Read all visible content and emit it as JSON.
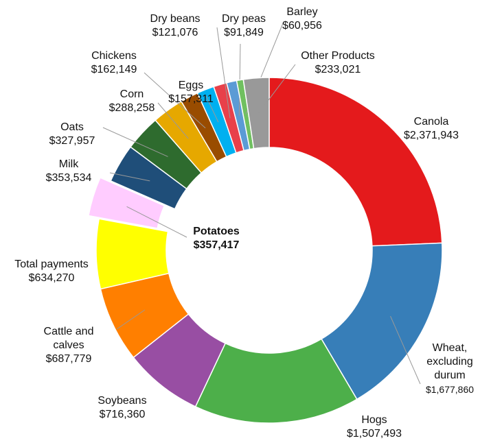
{
  "chart_data": {
    "type": "donut",
    "categories": [
      "Canola",
      "Wheat, excluding durum",
      "Hogs",
      "Soybeans",
      "Cattle and calves",
      "Total payments",
      "Potatoes",
      "Milk",
      "Oats",
      "Corn",
      "Chickens",
      "Eggs",
      "Dry beans",
      "Dry peas",
      "Barley",
      "Other Products"
    ],
    "values": [
      2371943,
      1677860,
      1507493,
      716360,
      687779,
      634270,
      357417,
      353534,
      327957,
      288258,
      162149,
      157311,
      121076,
      91849,
      60956,
      233021
    ],
    "value_labels": [
      "$2,371,943",
      "$1,677,860",
      "$1,507,493",
      "$716,360",
      "$687,779",
      "$634,270",
      "$357,417",
      "$353,534",
      "$327,957",
      "$288,258",
      "$162,149",
      "$157,311",
      "$121,076",
      "$91,849",
      "$60,956",
      "$233,021"
    ],
    "colors": [
      "#e41a1c",
      "#377eb8",
      "#4daf4a",
      "#984ea3",
      "#ff7f00",
      "#ffff00",
      "#ffccff",
      "#1f4e79",
      "#2e6b2e",
      "#e6a800",
      "#994c00",
      "#00b0f0",
      "#e8404a",
      "#5b9bd5",
      "#70c060",
      "#999999"
    ],
    "exploded": [
      6
    ]
  }
}
